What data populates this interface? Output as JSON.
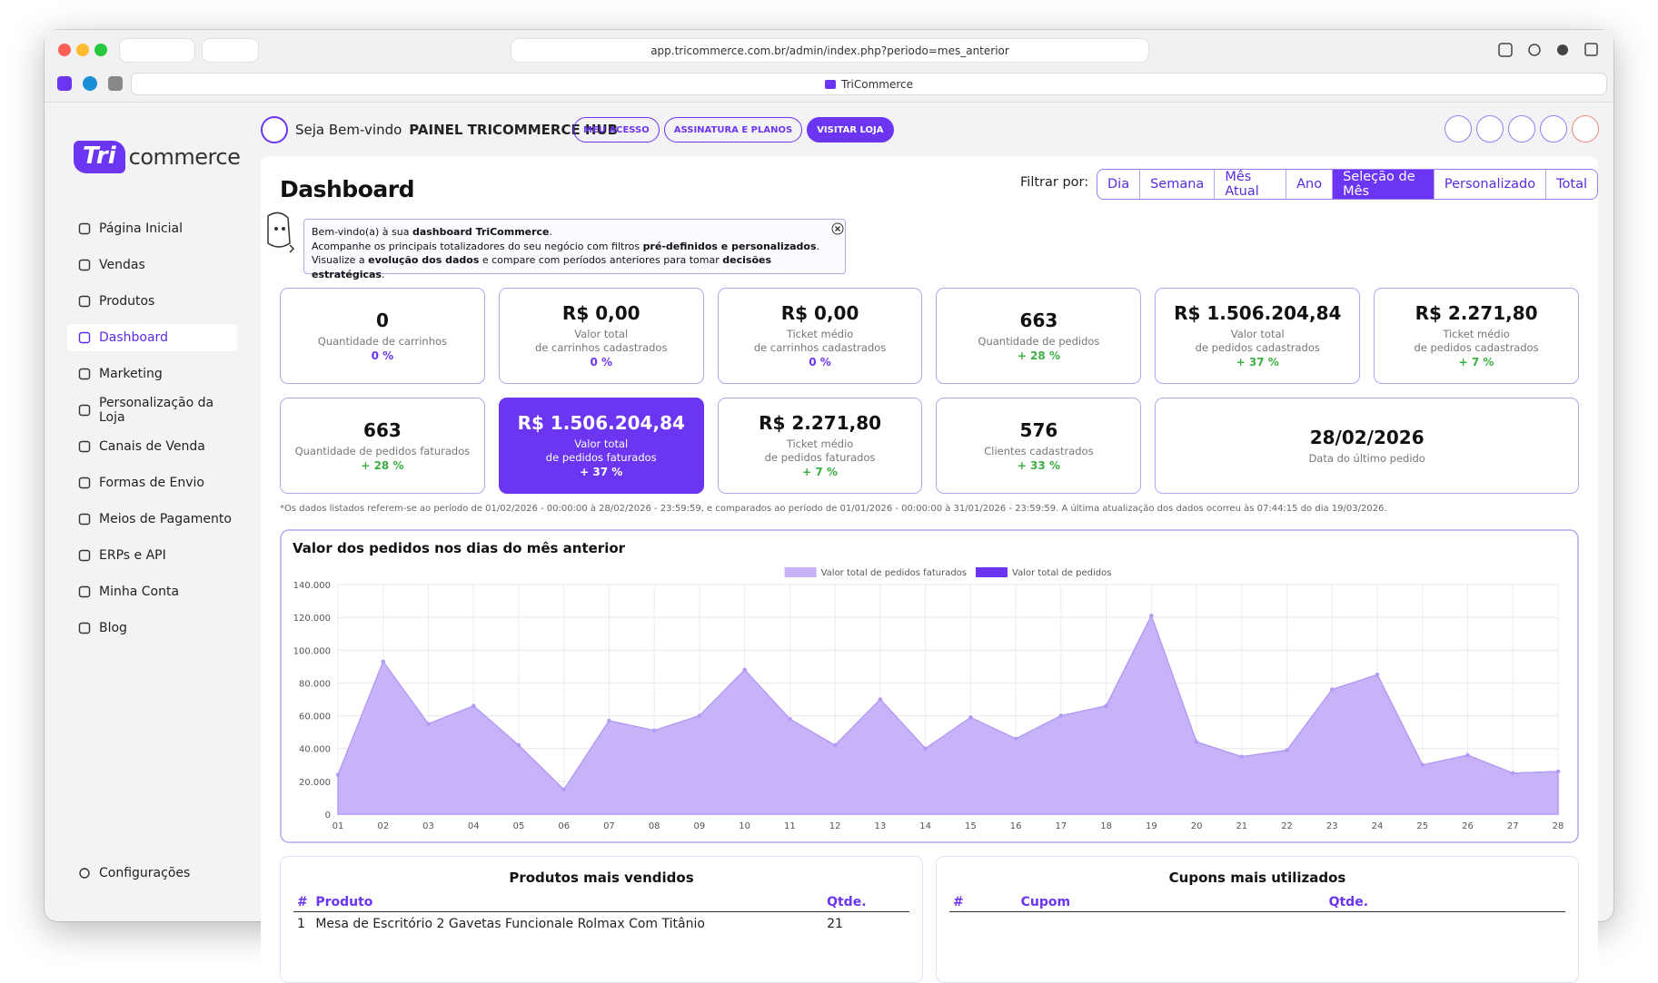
{
  "browser": {
    "url": "app.tricommerce.com.br/admin/index.php?periodo=mes_anterior",
    "tab_title": "TriCommerce"
  },
  "sidebar": {
    "logo": {
      "mark": "Tri",
      "text": "commerce"
    },
    "menu": [
      "Página Inicial",
      "Vendas",
      "Produtos",
      "Dashboard",
      "Marketing",
      "Personalização da Loja",
      "Canais de Venda",
      "Formas de Envio",
      "Meios de Pagamento",
      "ERPs e API",
      "Minha Conta",
      "Blog"
    ],
    "settings": "Configurações"
  },
  "header": {
    "welcome": "Seja Bem-vindo",
    "store": "PAINEL TRICOMMERCE HUB",
    "buttons": [
      "MEU ACESSO",
      "ASSINATURA E PLANOS",
      "VISITAR LOJA"
    ]
  },
  "dashboard": {
    "title": "Dashboard",
    "filter_label": "Filtrar por:",
    "filters": [
      "Dia",
      "Semana",
      "Mês Atual",
      "Ano",
      "Seleção de Mês",
      "Personalizado",
      "Total"
    ],
    "notice": [
      [
        "Bem-vindo(a) à sua ",
        "dashboard TriCommerce",
        "."
      ],
      [
        "Acompanhe os principais totalizadores do seu negócio com filtros ",
        "pré-definidos e personalizados",
        "."
      ],
      [
        "Visualize a ",
        "evolução dos dados",
        " e compare com períodos anteriores para tomar ",
        "decisões estratégicas",
        "."
      ]
    ],
    "cards": [
      {
        "value": "0",
        "label": [
          "Quantidade de carrinhos"
        ],
        "change": "0 %"
      },
      {
        "value": "R$ 0,00",
        "label": [
          "Valor total",
          "de carrinhos cadastrados"
        ],
        "change": "0 %"
      },
      {
        "value": "R$ 0,00",
        "label": [
          "Ticket médio",
          "de carrinhos cadastrados"
        ],
        "change": "0 %"
      },
      {
        "value": "663",
        "label": [
          "Quantidade de pedidos"
        ],
        "change": "+ 28 %"
      },
      {
        "value": "R$ 1.506.204,84",
        "label": [
          "Valor total",
          "de pedidos cadastrados"
        ],
        "change": "+ 37 %"
      },
      {
        "value": "R$ 2.271,80",
        "label": [
          "Ticket médio",
          "de pedidos cadastrados"
        ],
        "change": "+ 7 %"
      },
      {
        "value": "663",
        "label": [
          "Quantidade de pedidos faturados"
        ],
        "change": "+ 28 %"
      },
      {
        "value": "R$ 1.506.204,84",
        "label": [
          "Valor total",
          "de pedidos faturados"
        ],
        "change": "+ 37 %"
      },
      {
        "value": "R$ 2.271,80",
        "label": [
          "Ticket médio",
          "de pedidos faturados"
        ],
        "change": "+ 7 %"
      },
      {
        "value": "576",
        "label": [
          "Clientes cadastrados"
        ],
        "change": "+ 33 %"
      },
      {
        "value": "28/02/2026",
        "label": [
          "Data do último pedido"
        ]
      }
    ],
    "footnote": "*Os dados listados referem-se ao período de 01/02/2026 - 00:00:00 à 28/02/2026 - 23:59:59, e comparados ao período de 01/01/2026 - 00:00:00 à 31/01/2026 - 23:59:59. A última atualização dos dados ocorreu às 07:44:15 do dia 19/03/2026.",
    "tables": [
      {
        "title": "Produtos mais vendidos",
        "columns": [
          "#",
          "Produto",
          "Qtde."
        ],
        "rows": [
          [
            "1",
            "Mesa de Escritório 2 Gavetas Funcionale Rolmax Com Titânio",
            "21"
          ]
        ]
      },
      {
        "title": "Cupons mais utilizados",
        "columns": [
          "#",
          "Cupom",
          "Qtde."
        ],
        "rows": []
      }
    ]
  },
  "chart_data": {
    "type": "area",
    "title": "Valor dos pedidos nos dias do mês anterior",
    "categories": [
      "01",
      "02",
      "03",
      "04",
      "05",
      "06",
      "07",
      "08",
      "09",
      "10",
      "11",
      "12",
      "13",
      "14",
      "15",
      "16",
      "17",
      "18",
      "19",
      "20",
      "21",
      "22",
      "23",
      "24",
      "25",
      "26",
      "27",
      "28"
    ],
    "series": [
      {
        "name": "Valor total de pedidos faturados",
        "color": "#c7b3f8",
        "values": [
          24000,
          93000,
          55000,
          66000,
          42000,
          15000,
          57000,
          51000,
          60000,
          88000,
          58000,
          42000,
          70000,
          40000,
          59000,
          46000,
          60000,
          66000,
          121000,
          44000,
          35000,
          39000,
          76000,
          85000,
          30000,
          36000,
          25000,
          26000
        ]
      },
      {
        "name": "Valor total de pedidos",
        "color": "#6b35f2",
        "values": [
          24000,
          93000,
          55000,
          66000,
          42000,
          15000,
          57000,
          51000,
          60000,
          88000,
          58000,
          42000,
          70000,
          40000,
          59000,
          46000,
          60000,
          66000,
          121000,
          44000,
          35000,
          39000,
          76000,
          85000,
          30000,
          36000,
          25000,
          26000
        ]
      }
    ],
    "ylim": [
      0,
      140000
    ],
    "yticks": [
      0,
      {
        "value": 20000,
        "label": "20.000"
      },
      {
        "value": 40000,
        "label": "40.000"
      },
      {
        "value": 60000,
        "label": "60.000"
      },
      {
        "value": 80000,
        "label": "80.000"
      },
      {
        "value": 100000,
        "label": "100.000"
      },
      {
        "value": 120000,
        "label": "120.000"
      },
      {
        "value": 140000,
        "label": "140.000"
      }
    ],
    "grid": true,
    "legend": "top"
  }
}
